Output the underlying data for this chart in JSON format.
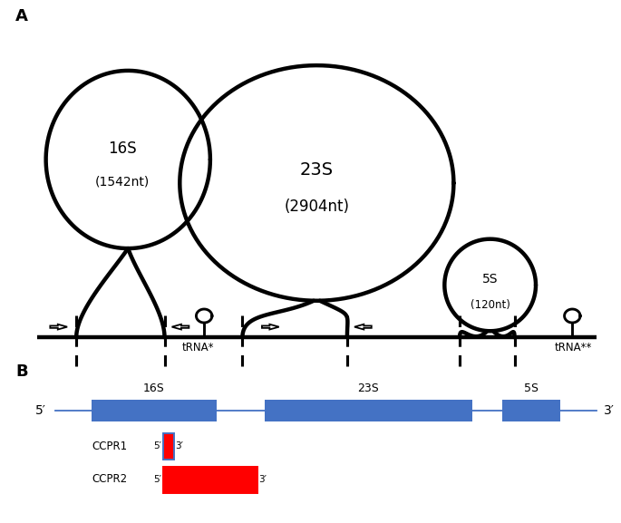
{
  "panel_A_label": "A",
  "panel_B_label": "B",
  "rna_16S_label": "16S",
  "rna_16S_nt": "(1542nt)",
  "rna_23S_label": "23S",
  "rna_23S_nt": "(2904nt)",
  "rna_5S_label": "5S",
  "rna_5S_nt": "(120nt)",
  "tRNA_star_label": "tRNA*",
  "tRNA_2star_label": "tRNA**",
  "ccpr1_label": "CCPR1",
  "ccpr2_label": "CCPR2",
  "prime5": "5′",
  "prime3": "3′",
  "blue_color": "#4472C4",
  "red_color": "#FF0000",
  "line_color": "#4472C4",
  "black": "#000000",
  "lw_thick": 3.2,
  "lw_thin": 1.5
}
